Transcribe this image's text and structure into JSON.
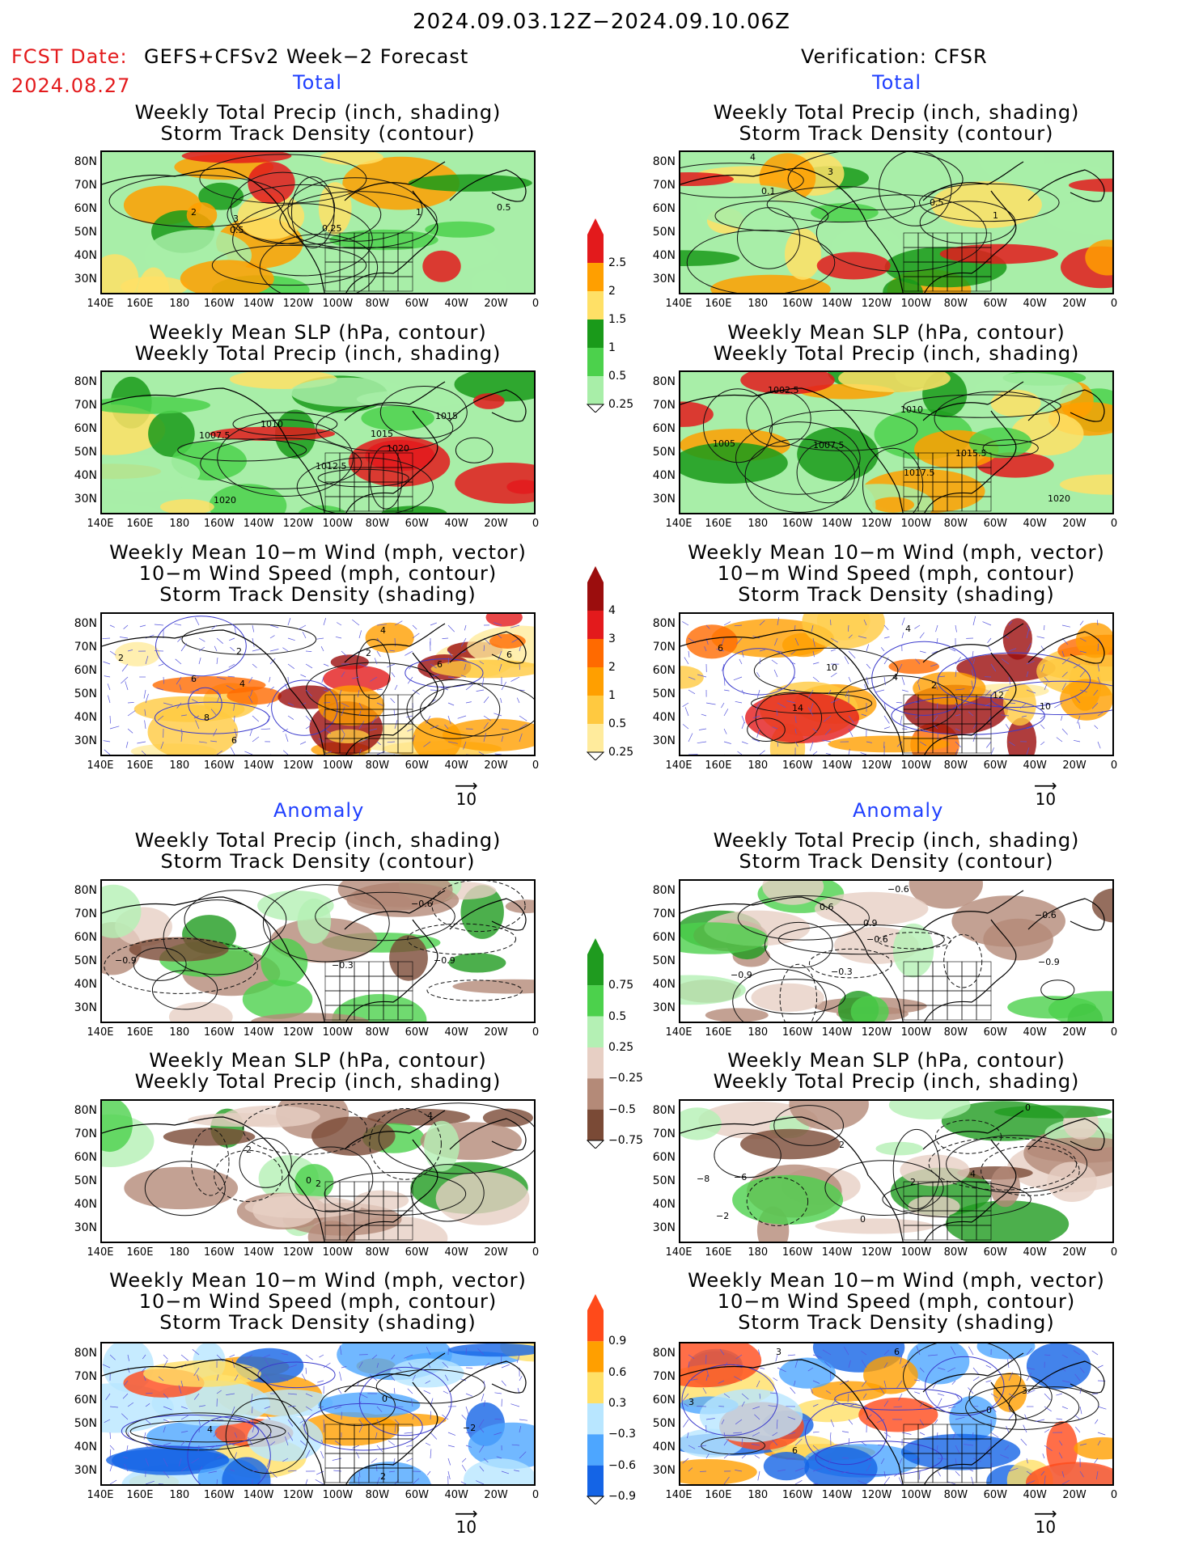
{
  "header": {
    "date_range": "2024.09.03.12Z−2024.09.10.06Z",
    "fcst_label": "FCST Date:",
    "fcst_model": "GEFS+CFSv2 Week−2 Forecast",
    "fcst_date": "2024.08.27",
    "verification": "Verification: CFSR"
  },
  "sections": {
    "total": "Total",
    "anomaly": "Anomaly"
  },
  "panel_titles": {
    "precip_storm": [
      "Weekly Total Precip (inch, shading)",
      "Storm Track Density (contour)"
    ],
    "slp_precip": [
      "Weekly Mean SLP (hPa, contour)",
      "Weekly Total Precip (inch, shading)"
    ],
    "wind_storm": [
      "Weekly Mean 10−m Wind (mph, vector)",
      "10−m Wind Speed (mph, contour)",
      "Storm Track Density (shading)"
    ]
  },
  "axes": {
    "lat_ticks": [
      "80N",
      "70N",
      "60N",
      "50N",
      "40N",
      "30N"
    ],
    "lon_ticks": [
      "140E",
      "160E",
      "180",
      "160W",
      "140W",
      "120W",
      "100W",
      "80W",
      "60W",
      "40W",
      "20W",
      "0"
    ]
  },
  "vector_ref": "10",
  "colorbars": {
    "precip_total": {
      "labels": [
        "2.5",
        "2",
        "1.5",
        "1",
        "0.5",
        "0.25"
      ],
      "colors": [
        "#e31a1c",
        "#ff9f00",
        "#ffe066",
        "#1a9a1a",
        "#4cd14c",
        "#a8eea8"
      ]
    },
    "storm_total": {
      "labels": [
        "4",
        "3",
        "2",
        "1",
        "0.5",
        "0.25"
      ],
      "colors": [
        "#9b0d0d",
        "#e31a1c",
        "#ff6a00",
        "#ff9f00",
        "#ffc940",
        "#ffeb9c"
      ]
    },
    "precip_anom": {
      "labels": [
        "0.75",
        "0.5",
        "0.25",
        "−0.25",
        "−0.5",
        "−0.75"
      ],
      "colors": [
        "#1f9b1f",
        "#4cd14c",
        "#b4f0b4",
        "#e7cfc4",
        "#b48a78",
        "#7a4a36"
      ]
    },
    "storm_anom": {
      "labels": [
        "0.9",
        "0.6",
        "0.3",
        "−0.3",
        "−0.6",
        "−0.9"
      ],
      "colors": [
        "#ff4a1a",
        "#ff9f00",
        "#ffe066",
        "#b8e6ff",
        "#4da6ff",
        "#1464e6"
      ]
    }
  },
  "panels": [
    {
      "id": "fc-total-precip",
      "labels": [
        [
          "2",
          110,
          78
        ],
        [
          "3",
          162,
          86
        ],
        [
          "0.5",
          158,
          100
        ],
        [
          "0.25",
          272,
          98
        ],
        [
          "1",
          388,
          78
        ],
        [
          "0.5",
          488,
          72
        ]
      ]
    },
    {
      "id": "obs-total-precip",
      "labels": [
        [
          "4",
          86,
          10
        ],
        [
          "3",
          182,
          28
        ],
        [
          "0.1",
          100,
          52
        ],
        [
          "0.5",
          308,
          66
        ],
        [
          "1",
          386,
          82
        ]
      ]
    },
    {
      "id": "fc-total-slp",
      "labels": [
        [
          "1007.5",
          120,
          82
        ],
        [
          "1010",
          196,
          68
        ],
        [
          "1015",
          332,
          80
        ],
        [
          "1020",
          352,
          98
        ],
        [
          "1012.5",
          264,
          120
        ],
        [
          "1015",
          412,
          58
        ],
        [
          "1020",
          138,
          162
        ]
      ]
    },
    {
      "id": "obs-total-slp",
      "labels": [
        [
          "1002.5",
          108,
          26
        ],
        [
          "1010",
          272,
          50
        ],
        [
          "1005",
          40,
          92
        ],
        [
          "1007.5",
          164,
          94
        ],
        [
          "1015.5",
          340,
          104
        ],
        [
          "1017.5",
          276,
          128
        ],
        [
          "1020",
          454,
          160
        ]
      ]
    },
    {
      "id": "fc-total-wind",
      "labels": [
        [
          "2",
          20,
          58
        ],
        [
          "2",
          166,
          50
        ],
        [
          "6",
          110,
          84
        ],
        [
          "4",
          170,
          90
        ],
        [
          "4",
          344,
          24
        ],
        [
          "2",
          326,
          52
        ],
        [
          "6",
          414,
          66
        ],
        [
          "6",
          500,
          54
        ],
        [
          "8",
          126,
          132
        ],
        [
          "6",
          160,
          160
        ]
      ]
    },
    {
      "id": "obs-total-wind",
      "labels": [
        [
          "6",
          46,
          46
        ],
        [
          "4",
          278,
          22
        ],
        [
          "10",
          180,
          70
        ],
        [
          "4",
          262,
          82
        ],
        [
          "2",
          310,
          92
        ],
        [
          "12",
          386,
          104
        ],
        [
          "14",
          138,
          120
        ],
        [
          "10",
          444,
          118
        ]
      ]
    },
    {
      "id": "fc-anom-precip",
      "labels": [
        [
          "−0.6",
          382,
          32
        ],
        [
          "−0.9",
          16,
          102
        ],
        [
          "−0.3",
          284,
          108
        ],
        [
          "−0.9",
          410,
          102
        ]
      ]
    },
    {
      "id": "obs-anom-precip",
      "labels": [
        [
          "−0.6",
          256,
          14
        ],
        [
          "0.6",
          172,
          36
        ],
        [
          "−0.6",
          438,
          46
        ],
        [
          "0.9",
          226,
          56
        ],
        [
          "−0.6",
          230,
          76
        ],
        [
          "−0.9",
          62,
          120
        ],
        [
          "−0.3",
          186,
          116
        ],
        [
          "−0.9",
          442,
          104
        ]
      ]
    },
    {
      "id": "fc-anom-slp",
      "labels": [
        [
          "4",
          402,
          22
        ],
        [
          "2",
          178,
          64
        ],
        [
          "2",
          264,
          106
        ],
        [
          "0",
          252,
          102
        ]
      ]
    },
    {
      "id": "obs-anom-slp",
      "labels": [
        [
          "0",
          426,
          12
        ],
        [
          "2",
          196,
          58
        ],
        [
          "−6",
          66,
          98
        ],
        [
          "−8",
          20,
          100
        ],
        [
          "2",
          284,
          104
        ],
        [
          "4",
          358,
          94
        ],
        [
          "0",
          222,
          150
        ],
        [
          "−2",
          44,
          146
        ]
      ]
    },
    {
      "id": "fc-anom-wind",
      "labels": [
        [
          "4",
          130,
          110
        ],
        [
          "0",
          346,
          72
        ],
        [
          "−2",
          446,
          108
        ],
        [
          "2",
          344,
          168
        ]
      ]
    },
    {
      "id": "obs-anom-wind",
      "labels": [
        [
          "3",
          118,
          14
        ],
        [
          "3",
          10,
          76
        ],
        [
          "6",
          264,
          14
        ],
        [
          "0",
          378,
          86
        ],
        [
          "3",
          422,
          62
        ],
        [
          "6",
          138,
          136
        ]
      ]
    }
  ]
}
